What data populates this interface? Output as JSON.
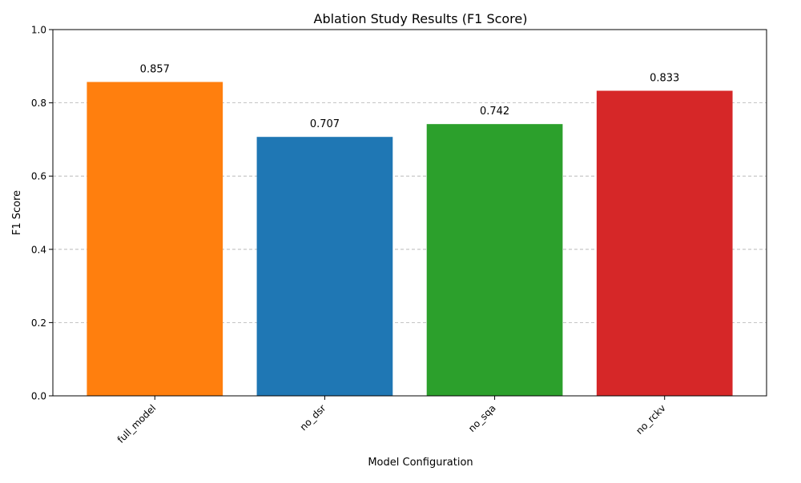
{
  "chart_data": {
    "type": "bar",
    "title": "Ablation Study Results (F1 Score)",
    "xlabel": "Model Configuration",
    "ylabel": "F1 Score",
    "ylim": [
      0,
      1.0
    ],
    "yticks": [
      "0.0",
      "0.2",
      "0.4",
      "0.6",
      "0.8",
      "1.0"
    ],
    "grid": "y-dashed",
    "categories": [
      "full_model",
      "no_dsr",
      "no_sqa",
      "no_rckv"
    ],
    "values": [
      0.857,
      0.707,
      0.742,
      0.833
    ],
    "value_labels": [
      "0.857",
      "0.707",
      "0.742",
      "0.833"
    ],
    "colors": [
      "#ff7f0e",
      "#1f77b4",
      "#2ca02c",
      "#d62728"
    ]
  }
}
